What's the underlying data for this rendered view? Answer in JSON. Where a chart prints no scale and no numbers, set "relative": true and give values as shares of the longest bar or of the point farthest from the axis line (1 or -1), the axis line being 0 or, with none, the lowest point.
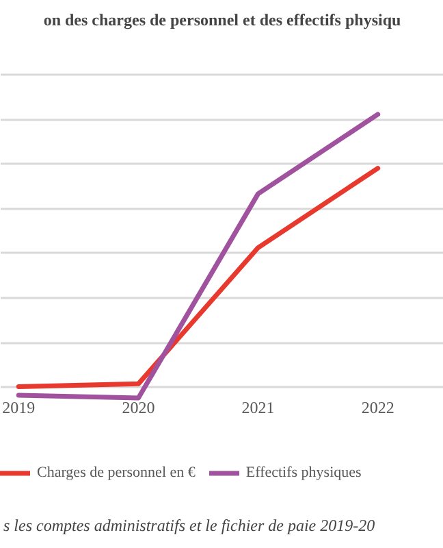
{
  "chart_data": {
    "type": "line",
    "title": "on des charges de personnel et des effectifs physiqu",
    "categories": [
      "2019",
      "2020",
      "2021",
      "2022"
    ],
    "relative": true,
    "grid": "y",
    "legend": "bottom",
    "marker": "none",
    "line_style": "solid",
    "series": [
      {
        "name": "Charges de personnel en €",
        "color": "#e8392f",
        "values": [
          0.04,
          0.05,
          0.53,
          0.81
        ]
      },
      {
        "name": "Effectifs physiques",
        "color": "#a0529e",
        "values": [
          0.01,
          0,
          0.72,
          1
        ]
      }
    ],
    "annotations": [
      "s les comptes administratifs et le fichier de paie 2019-20"
    ]
  }
}
